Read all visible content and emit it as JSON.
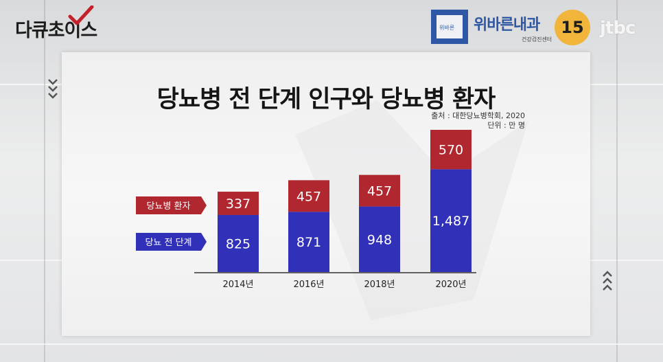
{
  "program_logo": "다큐초이스",
  "sponsor": {
    "name": "위바른내과",
    "sub": "건강검진센터",
    "emblem_text": "위바른"
  },
  "age_rating": "15",
  "channel": "jtbc",
  "colors": {
    "patients": "#b0272f",
    "prediabetes": "#3030b8",
    "age_badge": "#f1b53b",
    "sponsor_blue": "#2e58a6"
  },
  "chart_data": {
    "type": "bar",
    "stacked": true,
    "title": "당뇨병 전 단계 인구와 당뇨병 환자",
    "source": "출처 : 대한당뇨병학회, 2020",
    "unit": "단위 : 만 명",
    "categories": [
      "2014년",
      "2016년",
      "2018년",
      "2020년"
    ],
    "series": [
      {
        "name": "당뇨 전 단계",
        "values": [
          825,
          871,
          948,
          1487
        ]
      },
      {
        "name": "당뇨병 환자",
        "values": [
          337,
          457,
          457,
          570
        ]
      }
    ],
    "value_labels": [
      [
        "825",
        "871",
        "948",
        "1,487"
      ],
      [
        "337",
        "457",
        "457",
        "570"
      ]
    ],
    "ylim": [
      0,
      2057
    ],
    "grid": false,
    "legend_position": "left"
  }
}
